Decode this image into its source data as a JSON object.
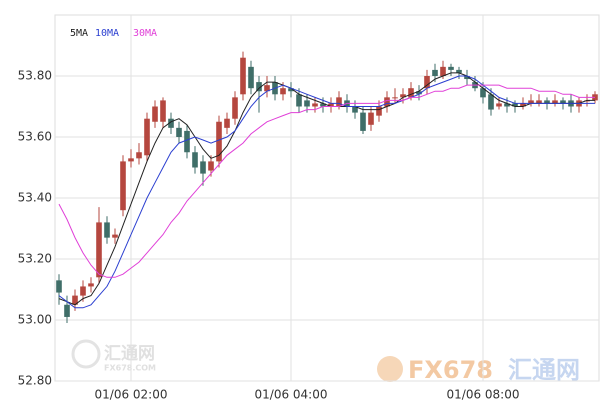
{
  "chart_data": {
    "type": "candlestick",
    "categories": [
      null,
      null,
      null,
      null,
      null,
      null,
      null,
      null,
      null,
      "01/06 02:00",
      null,
      null,
      null,
      null,
      null,
      null,
      null,
      null,
      null,
      null,
      null,
      null,
      null,
      null,
      null,
      null,
      null,
      null,
      null,
      "01/06 04:00",
      null,
      null,
      null,
      null,
      null,
      null,
      null,
      null,
      null,
      null,
      null,
      null,
      null,
      null,
      null,
      null,
      null,
      null,
      null,
      null,
      null,
      null,
      null,
      "01/06 08:00",
      null,
      null,
      null,
      null,
      null,
      null,
      null,
      null,
      null,
      null,
      null,
      null,
      null,
      null
    ],
    "open": [
      53.13,
      53.05,
      53.05,
      53.08,
      53.11,
      53.14,
      53.32,
      53.27,
      53.36,
      53.52,
      53.53,
      53.54,
      53.65,
      53.65,
      53.66,
      53.63,
      53.62,
      53.55,
      53.52,
      53.49,
      53.52,
      53.63,
      53.66,
      53.74,
      53.83,
      53.78,
      53.75,
      53.78,
      53.74,
      53.76,
      53.74,
      53.72,
      53.7,
      53.71,
      53.7,
      53.7,
      53.72,
      53.7,
      53.68,
      53.64,
      53.67,
      53.7,
      53.73,
      53.73,
      53.73,
      53.75,
      53.76,
      53.82,
      53.8,
      53.83,
      53.82,
      53.8,
      53.78,
      53.76,
      53.74,
      53.7,
      53.71,
      53.71,
      53.7,
      53.71,
      53.71,
      53.72,
      53.71,
      53.72,
      53.72,
      53.7,
      53.72,
      53.72
    ],
    "high": [
      53.15,
      53.08,
      53.1,
      53.13,
      53.14,
      53.37,
      53.34,
      53.3,
      53.54,
      53.56,
      53.58,
      53.68,
      53.72,
      53.73,
      53.68,
      53.65,
      53.64,
      53.57,
      53.54,
      53.54,
      53.67,
      53.68,
      53.75,
      53.88,
      53.85,
      53.8,
      53.8,
      53.8,
      53.78,
      53.78,
      53.76,
      53.74,
      53.73,
      53.73,
      53.73,
      53.75,
      53.74,
      53.72,
      53.7,
      53.7,
      53.72,
      53.75,
      53.76,
      53.76,
      53.78,
      53.77,
      53.82,
      53.84,
      53.85,
      53.84,
      53.83,
      53.82,
      53.8,
      53.78,
      53.76,
      53.73,
      53.73,
      53.72,
      53.73,
      53.74,
      53.74,
      53.73,
      53.74,
      53.73,
      53.74,
      53.73,
      53.74,
      53.75
    ],
    "low": [
      53.05,
      52.99,
      53.03,
      53.06,
      53.09,
      53.12,
      53.25,
      53.25,
      53.34,
      53.5,
      53.51,
      53.52,
      53.63,
      53.63,
      53.61,
      53.58,
      53.53,
      53.48,
      53.44,
      53.47,
      53.5,
      53.61,
      53.64,
      53.72,
      53.74,
      53.68,
      53.73,
      53.72,
      53.72,
      53.73,
      53.68,
      53.68,
      53.68,
      53.68,
      53.68,
      53.69,
      53.68,
      53.66,
      53.61,
      53.62,
      53.65,
      53.68,
      53.71,
      53.71,
      53.72,
      53.72,
      53.74,
      53.78,
      53.79,
      53.8,
      53.79,
      53.77,
      53.75,
      53.71,
      53.67,
      53.69,
      53.68,
      53.68,
      53.69,
      53.7,
      53.7,
      53.69,
      53.7,
      53.69,
      53.68,
      53.68,
      53.7,
      53.71
    ],
    "close": [
      53.09,
      53.01,
      53.08,
      53.11,
      53.12,
      53.32,
      53.27,
      53.28,
      53.52,
      53.53,
      53.55,
      53.66,
      53.7,
      53.72,
      53.63,
      53.6,
      53.55,
      53.5,
      53.48,
      53.52,
      53.65,
      53.66,
      53.73,
      53.86,
      53.76,
      53.75,
      53.77,
      53.74,
      53.76,
      53.75,
      53.7,
      53.7,
      53.71,
      53.7,
      53.71,
      53.73,
      53.7,
      53.68,
      53.62,
      53.68,
      53.7,
      53.73,
      53.73,
      53.74,
      53.76,
      53.74,
      53.8,
      53.8,
      53.83,
      53.82,
      53.81,
      53.79,
      53.76,
      53.73,
      53.69,
      53.71,
      53.7,
      53.7,
      53.71,
      53.72,
      53.72,
      53.71,
      53.72,
      53.71,
      53.7,
      53.72,
      53.72,
      53.74
    ],
    "up_color": "#b5473f",
    "down_color": "#3f6e68",
    "series": [
      {
        "name": "5MA",
        "color": "#222222",
        "values": [
          53.07,
          53.06,
          53.05,
          53.07,
          53.08,
          53.12,
          53.18,
          53.24,
          53.31,
          53.38,
          53.45,
          53.52,
          53.58,
          53.63,
          53.65,
          53.66,
          53.64,
          53.6,
          53.56,
          53.53,
          53.54,
          53.57,
          53.62,
          53.68,
          53.73,
          53.76,
          53.78,
          53.78,
          53.77,
          53.76,
          53.74,
          53.73,
          53.72,
          53.71,
          53.7,
          53.7,
          53.7,
          53.7,
          53.69,
          53.69,
          53.69,
          53.7,
          53.71,
          53.73,
          53.74,
          53.75,
          53.77,
          53.79,
          53.8,
          53.81,
          53.81,
          53.8,
          53.78,
          53.76,
          53.74,
          53.72,
          53.71,
          53.7,
          53.7,
          53.71,
          53.71,
          53.71,
          53.71,
          53.71,
          53.71,
          53.71,
          53.72,
          53.72
        ]
      },
      {
        "name": "10MA",
        "color": "#2b3fd0",
        "values": [
          53.08,
          53.06,
          53.04,
          53.04,
          53.05,
          53.08,
          53.11,
          53.16,
          53.22,
          53.28,
          53.34,
          53.4,
          53.45,
          53.5,
          53.55,
          53.58,
          53.59,
          53.6,
          53.59,
          53.58,
          53.59,
          53.6,
          53.62,
          53.66,
          53.7,
          53.73,
          53.75,
          53.76,
          53.77,
          53.76,
          53.75,
          53.74,
          53.73,
          53.72,
          53.71,
          53.71,
          53.7,
          53.7,
          53.7,
          53.7,
          53.7,
          53.71,
          53.71,
          53.72,
          53.73,
          53.74,
          53.76,
          53.77,
          53.78,
          53.79,
          53.8,
          53.8,
          53.79,
          53.77,
          53.75,
          53.73,
          53.72,
          53.71,
          53.71,
          53.71,
          53.71,
          53.71,
          53.71,
          53.71,
          53.71,
          53.71,
          53.71,
          53.71
        ]
      },
      {
        "name": "30MA",
        "color": "#e040d8",
        "values": [
          53.38,
          53.33,
          53.27,
          53.22,
          53.18,
          53.15,
          53.14,
          53.14,
          53.15,
          53.17,
          53.19,
          53.22,
          53.25,
          53.28,
          53.32,
          53.35,
          53.39,
          53.42,
          53.45,
          53.48,
          53.51,
          53.54,
          53.56,
          53.58,
          53.61,
          53.63,
          53.65,
          53.66,
          53.67,
          53.68,
          53.68,
          53.69,
          53.69,
          53.7,
          53.7,
          53.7,
          53.71,
          53.71,
          53.71,
          53.71,
          53.71,
          53.72,
          53.72,
          53.72,
          53.73,
          53.73,
          53.74,
          53.75,
          53.75,
          53.76,
          53.76,
          53.77,
          53.77,
          53.77,
          53.77,
          53.77,
          53.76,
          53.76,
          53.76,
          53.76,
          53.75,
          53.75,
          53.75,
          53.74,
          53.74,
          53.73,
          53.73,
          53.73
        ]
      }
    ],
    "ylim": [
      52.8,
      54.0
    ],
    "yticks": [
      {
        "value": 52.8,
        "label": "52.80"
      },
      {
        "value": 53.0,
        "label": "53.00"
      },
      {
        "value": 53.2,
        "label": "53.20"
      },
      {
        "value": 53.4,
        "label": "53.40"
      },
      {
        "value": 53.6,
        "label": "53.60"
      },
      {
        "value": 53.8,
        "label": "53.80"
      }
    ],
    "grid": true,
    "watermarks": [
      "汇通网",
      "FX678.COM",
      "FX678",
      "汇通网"
    ]
  }
}
